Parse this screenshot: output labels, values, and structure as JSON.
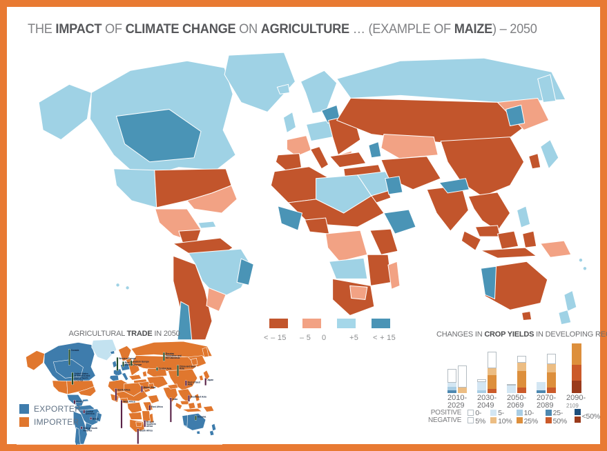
{
  "frame": {
    "border_color": "#e87a33",
    "background": "#ffffff"
  },
  "title": {
    "segments": [
      {
        "text": "THE ",
        "bold": false
      },
      {
        "text": "IMPACT",
        "bold": true
      },
      {
        "text": " OF ",
        "bold": false
      },
      {
        "text": "CLIMATE CHANGE",
        "bold": true
      },
      {
        "text": " ON ",
        "bold": false
      },
      {
        "text": "AGRICULTURE",
        "bold": true
      },
      {
        "text": " … (EXAMPLE OF ",
        "bold": false
      },
      {
        "text": "MAIZE",
        "bold": true
      },
      {
        "text": ") – 2050",
        "bold": false
      }
    ]
  },
  "palette": {
    "yield": {
      "neg_high": "#c2552c",
      "neg_low": "#f2a284",
      "pos_low": "#9fd2e5",
      "pos_high": "#4a94b6"
    },
    "trade": {
      "exporter": "#3e7cac",
      "importer": "#e0772e",
      "none": "#c3e2f0"
    }
  },
  "map_legend": {
    "labels": [
      "< – 15",
      "– 5",
      "0",
      "+5",
      "< + 15"
    ],
    "colors": [
      "#c2552c",
      "#f2a284",
      "#a5d7e9",
      "#4a94b6"
    ]
  },
  "map_regions": {
    "alaska": {
      "yield": "pos_low",
      "trade": "importer"
    },
    "canada": {
      "yield": "pos_low",
      "trade": "exporter"
    },
    "canada_w": {
      "yield": "pos_high",
      "trade": "exporter"
    },
    "greenland": {
      "yield": "pos_low",
      "trade": "none"
    },
    "us_w": {
      "yield": "pos_low",
      "trade": "importer"
    },
    "us_c": {
      "yield": "neg_high",
      "trade": "importer"
    },
    "us_se": {
      "yield": "neg_low",
      "trade": "importer"
    },
    "mexico": {
      "yield": "neg_low",
      "trade": "exporter"
    },
    "mexico_s": {
      "yield": "neg_high",
      "trade": "exporter"
    },
    "centam": {
      "yield": "neg_high",
      "trade": "exporter"
    },
    "cuba": {
      "yield": "pos_low",
      "trade": "exporter"
    },
    "sa_n": {
      "yield": "neg_high",
      "trade": "exporter"
    },
    "sa_br": {
      "yield": "pos_low",
      "trade": "exporter"
    },
    "sa_br_e": {
      "yield": "pos_high",
      "trade": "exporter"
    },
    "sa_andes": {
      "yield": "neg_high",
      "trade": "exporter"
    },
    "sa_py": {
      "yield": "neg_low",
      "trade": "exporter"
    },
    "sa_cl": {
      "yield": "pos_high",
      "trade": "exporter"
    },
    "sa_tip": {
      "yield": "pos_low",
      "trade": "exporter"
    },
    "iceland": {
      "yield": "pos_low",
      "trade": "exporter"
    },
    "scand": {
      "yield": "pos_low",
      "trade": "importer"
    },
    "uk": {
      "yield": "pos_low",
      "trade": "exporter"
    },
    "france": {
      "yield": "neg_low",
      "trade": "exporter"
    },
    "iberia": {
      "yield": "neg_high",
      "trade": "exporter"
    },
    "eu_c": {
      "yield": "pos_low",
      "trade": "exporter"
    },
    "baltic": {
      "yield": "pos_high",
      "trade": "importer"
    },
    "italy": {
      "yield": "neg_high",
      "trade": "exporter"
    },
    "eu_e": {
      "yield": "neg_high",
      "trade": "importer"
    },
    "balkan": {
      "yield": "neg_low",
      "trade": "importer"
    },
    "ru_arctic": {
      "yield": "pos_low",
      "trade": "importer"
    },
    "ru_main": {
      "yield": "neg_high",
      "trade": "importer"
    },
    "kazakh": {
      "yield": "neg_low",
      "trade": "importer"
    },
    "fareast": {
      "yield": "neg_low",
      "trade": "importer"
    },
    "fareast_t": {
      "yield": "pos_high",
      "trade": "importer"
    },
    "kamchatka": {
      "yield": "pos_low",
      "trade": "importer"
    },
    "turkey": {
      "yield": "neg_high",
      "trade": "importer"
    },
    "arabia": {
      "yield": "neg_high",
      "trade": "importer"
    },
    "caspian_t": {
      "yield": "pos_high",
      "trade": "importer"
    },
    "iran": {
      "yield": "neg_high",
      "trade": "importer"
    },
    "india": {
      "yield": "neg_high",
      "trade": "importer"
    },
    "himalaya": {
      "yield": "pos_high",
      "trade": "importer"
    },
    "china": {
      "yield": "neg_high",
      "trade": "importer"
    },
    "japan": {
      "yield": "pos_low",
      "trade": "importer"
    },
    "korea": {
      "yield": "neg_high",
      "trade": "importer"
    },
    "seasia": {
      "yield": "neg_high",
      "trade": "importer"
    },
    "phil": {
      "yield": "pos_low",
      "trade": "importer"
    },
    "malaysia": {
      "yield": "neg_high",
      "trade": "importer"
    },
    "sumatra": {
      "yield": "neg_high",
      "trade": "importer"
    },
    "java": {
      "yield": "neg_high",
      "trade": "importer"
    },
    "borneo": {
      "yield": "neg_high",
      "trade": "importer"
    },
    "sulawesi": {
      "yield": "neg_high",
      "trade": "importer"
    },
    "png": {
      "yield": "neg_low",
      "trade": "importer"
    },
    "australia": {
      "yield": "neg_high",
      "trade": "exporter"
    },
    "aus_w": {
      "yield": "pos_high",
      "trade": "exporter"
    },
    "tasmania": {
      "yield": "neg_high",
      "trade": "exporter"
    },
    "nz_n": {
      "yield": "pos_low",
      "trade": "exporter"
    },
    "nz_s": {
      "yield": "pos_low",
      "trade": "exporter"
    },
    "af_nw": {
      "yield": "neg_high",
      "trade": "importer"
    },
    "af_sahara": {
      "yield": "pos_low",
      "trade": "importer"
    },
    "af_libya": {
      "yield": "pos_low",
      "trade": "importer"
    },
    "af_egypt": {
      "yield": "pos_high",
      "trade": "importer"
    },
    "af_sahel": {
      "yield": "neg_high",
      "trade": "importer"
    },
    "af_wcoast": {
      "yield": "pos_high",
      "trade": "importer"
    },
    "af_nigeria": {
      "yield": "neg_high",
      "trade": "importer"
    },
    "af_congo": {
      "yield": "neg_low",
      "trade": "importer"
    },
    "af_horn": {
      "yield": "pos_high",
      "trade": "importer"
    },
    "af_east": {
      "yield": "neg_high",
      "trade": "importer"
    },
    "af_zambia": {
      "yield": "pos_low",
      "trade": "importer"
    },
    "af_tanmoz": {
      "yield": "neg_high",
      "trade": "importer"
    },
    "af_south": {
      "yield": "neg_high",
      "trade": "importer"
    },
    "af_botswana": {
      "yield": "neg_low",
      "trade": "importer"
    },
    "af_mada": {
      "yield": "neg_low",
      "trade": "importer"
    }
  },
  "trade_inset": {
    "title_segments": [
      {
        "text": "AGRICULTURAL ",
        "bold": false
      },
      {
        "text": "TRADE",
        "bold": true
      },
      {
        "text": " IN 2050",
        "bold": false
      }
    ],
    "legend": [
      {
        "label": "EXPORTER",
        "color": "#3e7cac"
      },
      {
        "label": "IMPORTER",
        "color": "#e0772e"
      }
    ],
    "bar_colors": {
      "export": "#234d28",
      "import": "#5a2347"
    },
    "bars": [
      {
        "region": "Canada",
        "direction": "export",
        "x": 212,
        "base": 105,
        "len": 65
      },
      {
        "region": "United States of America and Rest of North America",
        "direction": "export",
        "x": 225,
        "base": 185,
        "len": 50
      },
      {
        "region": "Mexico",
        "direction": "import",
        "x": 233,
        "base": 248,
        "len": 16
      },
      {
        "region": "Central America",
        "direction": "import",
        "x": 272,
        "base": 288,
        "len": 14
      },
      {
        "region": "Brazil",
        "direction": "import",
        "x": 300,
        "base": 318,
        "len": 10
      },
      {
        "region": "Rest of South America",
        "direction": "import",
        "x": 262,
        "base": 356,
        "len": 10
      },
      {
        "region": "Western Europe",
        "direction": "export",
        "x": 408,
        "base": 128,
        "len": 55
      },
      {
        "region": "Rest of Western Europe",
        "direction": "export",
        "x": 432,
        "base": 112,
        "len": 22
      },
      {
        "region": "Eastern Europe",
        "direction": "export",
        "x": 465,
        "base": 108,
        "len": 22
      },
      {
        "region": "North Africa",
        "direction": "import",
        "x": 402,
        "base": 200,
        "len": 50
      },
      {
        "region": "West Africa",
        "direction": "import",
        "x": 425,
        "base": 248,
        "len": 115
      },
      {
        "region": "South Africa",
        "direction": "import",
        "x": 492,
        "base": 365,
        "len": 62
      },
      {
        "region": "Rest of Southern Africa",
        "direction": "import",
        "x": 520,
        "base": 330,
        "len": 28
      },
      {
        "region": "East Africa",
        "direction": "import",
        "x": 540,
        "base": 268,
        "len": 22
      },
      {
        "region": "Middle East",
        "direction": "import",
        "x": 508,
        "base": 190,
        "len": 26
      },
      {
        "region": "Russian Federation and the Caucasus",
        "direction": "export",
        "x": 598,
        "base": 88,
        "len": 35
      },
      {
        "region": "Central Asia",
        "direction": "export",
        "x": 570,
        "base": 128,
        "len": 14
      },
      {
        "region": "China and East Asia",
        "direction": "export",
        "x": 655,
        "base": 150,
        "len": 45
      },
      {
        "region": "Rest of East Asia",
        "direction": "import",
        "x": 688,
        "base": 168,
        "len": 22
      },
      {
        "region": "Japan",
        "direction": "import",
        "x": 768,
        "base": 158,
        "len": 30
      },
      {
        "region": "India",
        "direction": "import",
        "x": 626,
        "base": 238,
        "len": 100
      },
      {
        "region": "Southeast Asia",
        "direction": "import",
        "x": 700,
        "base": 228,
        "len": 26
      },
      {
        "region": "Oceania",
        "direction": "export",
        "x": 728,
        "base": 330,
        "len": 18
      }
    ]
  },
  "chart_data": {
    "type": "bar",
    "title_segments": [
      {
        "text": "CHANGES IN ",
        "bold": false
      },
      {
        "text": "CROP YIELDS",
        "bold": true
      },
      {
        "text": " IN DEVELOPING REGIONS",
        "bold": false
      }
    ],
    "categories": [
      "2010-2029",
      "2030-2049",
      "2050-2069",
      "2070-2089",
      "2090-2109"
    ],
    "category_lines": [
      [
        "2010-",
        "2029"
      ],
      [
        "2030-",
        "2049"
      ],
      [
        "2050-",
        "2069"
      ],
      [
        "2070-",
        "2089"
      ],
      [
        "2090-",
        "2109"
      ]
    ],
    "units": "relative height units (unlabeled axis)",
    "legend_rows": [
      "POSITIVE",
      "NEGATIVE"
    ],
    "legend_items": [
      "0-5%",
      "5-10%",
      "10-25%",
      "25-50%",
      "<50%"
    ],
    "colors": {
      "positive": {
        "0-5%": "#ffffff",
        "5-10%": "#d3e6f3",
        "10-25%": "#a9cde4",
        "25-50%": "#4e88b0",
        "<50%": "#1c4e7c"
      },
      "negative": {
        "0-5%": "#ffffff",
        "5-10%": "#ecbd83",
        "10-25%": "#dd8f3c",
        "25-50%": "#cb5a2a",
        "<50%": "#9a3a1b"
      }
    },
    "white_border": "#b3bcc2",
    "series": [
      {
        "name": "positive",
        "bars": [
          [
            [
              "25-50%",
              4
            ],
            [
              "10-25%",
              5
            ],
            [
              "5-10%",
              6
            ],
            [
              "0-5%",
              20
            ]
          ],
          [
            [
              "10-25%",
              4
            ],
            [
              "5-10%",
              12
            ],
            [
              "0-5%",
              4
            ]
          ],
          [
            [
              "5-10%",
              11
            ],
            [
              "0-5%",
              2
            ]
          ],
          [
            [
              "25-50%",
              4
            ],
            [
              "5-10%",
              12
            ]
          ],
          []
        ]
      },
      {
        "name": "negative",
        "bars": [
          [
            [
              "5-10%",
              8
            ],
            [
              "0-5%",
              32
            ]
          ],
          [
            [
              "25-50%",
              6
            ],
            [
              "10-25%",
              20
            ],
            [
              "5-10%",
              10
            ],
            [
              "0-5%",
              24
            ]
          ],
          [
            [
              "25-50%",
              8
            ],
            [
              "10-25%",
              24
            ],
            [
              "5-10%",
              12
            ],
            [
              "0-5%",
              10
            ]
          ],
          [
            [
              "25-50%",
              8
            ],
            [
              "10-25%",
              22
            ],
            [
              "5-10%",
              12
            ],
            [
              "0-5%",
              15
            ]
          ],
          [
            [
              "<50%",
              18
            ],
            [
              "25-50%",
              23
            ],
            [
              "10-25%",
              31
            ]
          ]
        ]
      }
    ]
  }
}
